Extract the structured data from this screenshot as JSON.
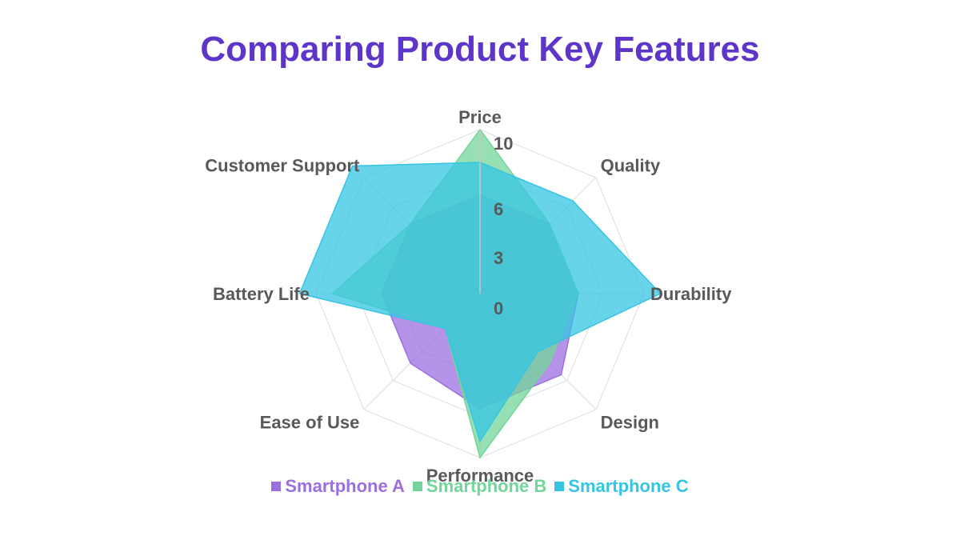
{
  "chart_data": {
    "type": "radar",
    "title": "Comparing Product Key Features",
    "categories": [
      "Price",
      "Quality",
      "Durability",
      "Design",
      "Performance",
      "Ease of Use",
      "Battery Life",
      "Customer Support"
    ],
    "rlim": [
      0,
      10
    ],
    "ticks": [
      "0",
      "3",
      "6",
      "10"
    ],
    "tick_values": [
      0,
      3,
      6,
      10
    ],
    "series": [
      {
        "name": "Smartphone A",
        "color": "#9b6fe0",
        "values": [
          6,
          6,
          6,
          7,
          7,
          6,
          6,
          6
        ]
      },
      {
        "name": "Smartphone B",
        "color": "#73d59a",
        "values": [
          10,
          6,
          6,
          6,
          10,
          3,
          9,
          6
        ]
      },
      {
        "name": "Smartphone C",
        "color": "#35c5e3",
        "values": [
          8,
          8,
          11,
          5,
          9,
          3,
          11,
          11
        ]
      }
    ],
    "legend_position": "bottom",
    "title_color": "#5d35c9",
    "label_color": "#595959"
  }
}
